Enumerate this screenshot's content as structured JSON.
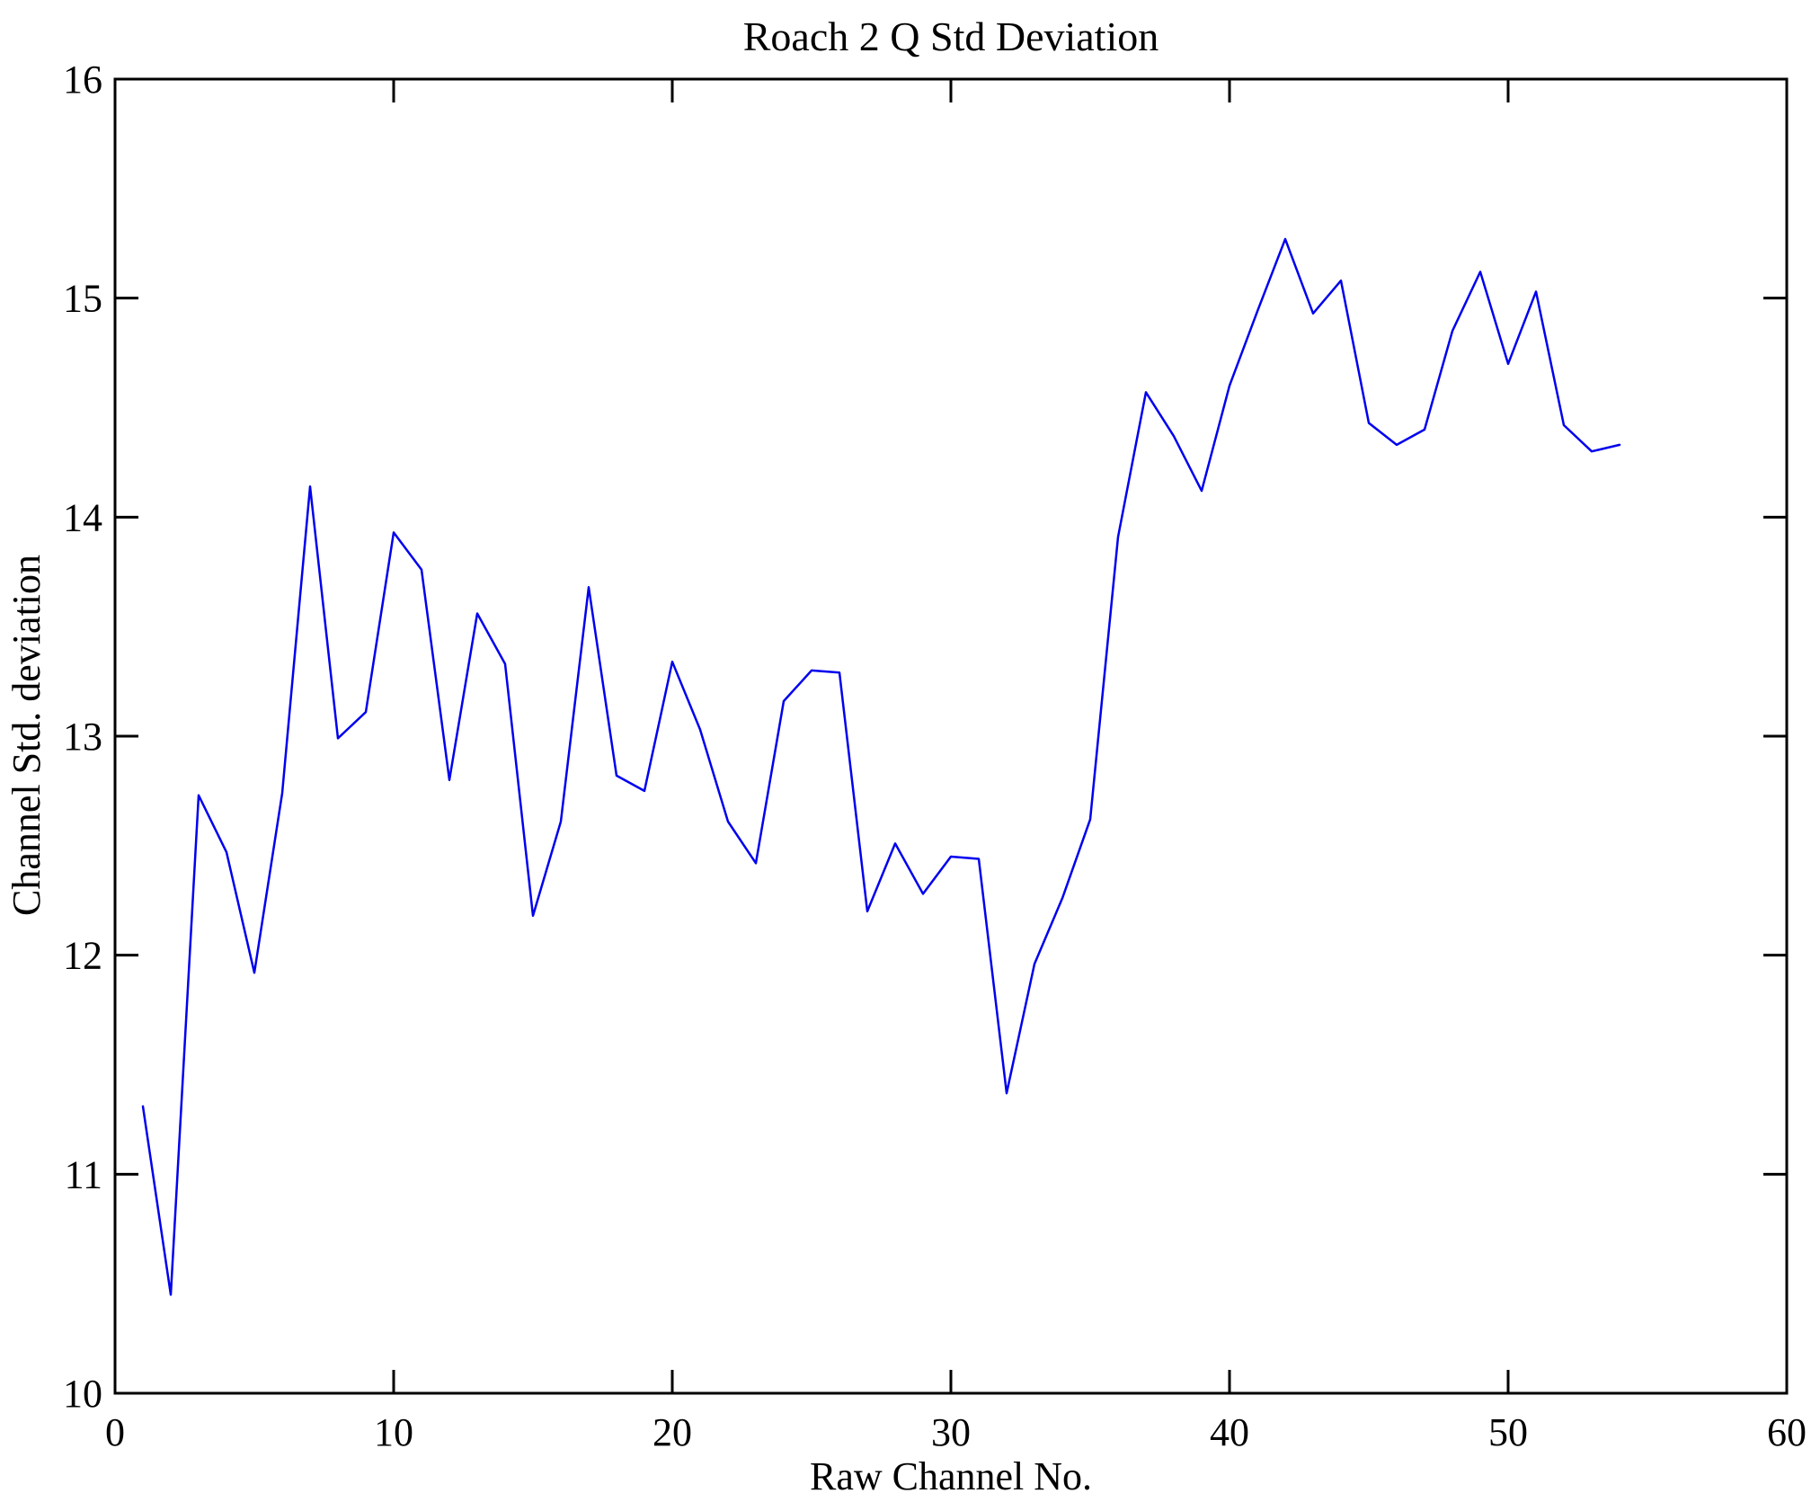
{
  "figure": {
    "background": "#ffffff"
  },
  "chart_data": {
    "type": "line",
    "title": "Roach 2 Q Std Deviation",
    "xlabel": "Raw Channel No.",
    "ylabel": "Channel Std. deviation",
    "xlim": [
      0,
      60
    ],
    "ylim": [
      10,
      16
    ],
    "xticks": [
      0,
      10,
      20,
      30,
      40,
      50,
      60
    ],
    "yticks": [
      10,
      11,
      12,
      13,
      14,
      15,
      16
    ],
    "grid": false,
    "legend_position": "none",
    "line_color": "#0000ee",
    "axis_color": "#000000",
    "x": [
      1,
      2,
      3,
      4,
      5,
      6,
      7,
      8,
      9,
      10,
      11,
      12,
      13,
      14,
      15,
      16,
      17,
      18,
      19,
      20,
      21,
      22,
      23,
      24,
      25,
      26,
      27,
      28,
      29,
      30,
      31,
      32,
      33,
      34,
      35,
      36,
      37,
      38,
      39,
      40,
      41,
      42,
      43,
      44,
      45,
      46,
      47,
      48,
      49,
      50,
      51,
      52,
      53,
      54
    ],
    "y": [
      11.31,
      10.45,
      12.73,
      12.47,
      11.92,
      12.74,
      14.14,
      12.99,
      13.11,
      13.93,
      13.76,
      12.8,
      13.56,
      13.33,
      12.18,
      12.61,
      13.68,
      12.82,
      12.75,
      13.34,
      13.03,
      12.61,
      12.42,
      13.16,
      13.3,
      13.29,
      12.2,
      12.51,
      12.28,
      12.45,
      12.44,
      11.37,
      11.96,
      12.26,
      12.62,
      13.91,
      14.57,
      14.37,
      14.12,
      14.6,
      14.94,
      15.27,
      14.93,
      15.08,
      14.43,
      14.33,
      14.4,
      14.85,
      15.12,
      14.7,
      15.03,
      14.42,
      14.3,
      14.33
    ]
  }
}
